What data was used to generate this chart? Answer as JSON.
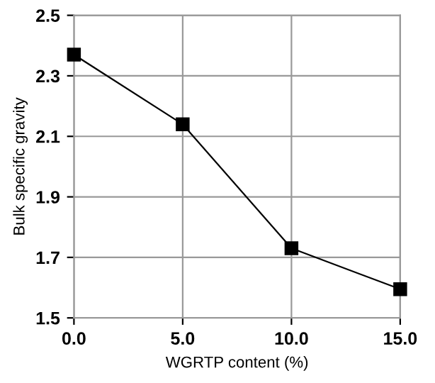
{
  "chart_data": {
    "type": "line",
    "xlabel": "WGRTP content (%)",
    "ylabel": "Bulk specific gravity",
    "x": [
      0,
      5,
      10,
      15
    ],
    "series": [
      {
        "color": "#000000",
        "values": [
          2.37,
          2.14,
          1.73,
          1.595
        ]
      }
    ],
    "xlim": [
      0,
      15
    ],
    "ylim": [
      1.5,
      2.5
    ],
    "xticks": [
      {
        "value": 0,
        "label": "0.0"
      },
      {
        "value": 5,
        "label": "5.0"
      },
      {
        "value": 10,
        "label": "10.0"
      },
      {
        "value": 15,
        "label": "15.0"
      }
    ],
    "yticks": [
      1.5,
      1.7,
      1.9,
      2.1,
      2.3,
      2.5
    ],
    "grid": true,
    "marker": "square",
    "line_style": "solid"
  }
}
